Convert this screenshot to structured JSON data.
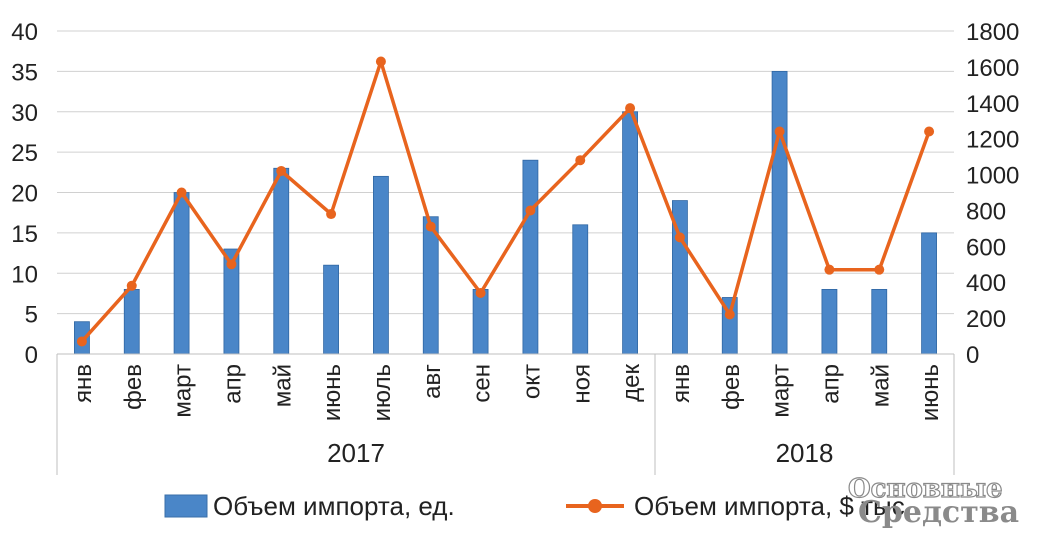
{
  "chart_data": {
    "type": "bar",
    "categories": [
      "янв",
      "фев",
      "март",
      "апр",
      "май",
      "июнь",
      "июль",
      "авг",
      "сен",
      "окт",
      "ноя",
      "дек",
      "янв",
      "фев",
      "март",
      "апр",
      "май",
      "июнь"
    ],
    "groups": [
      {
        "label": "2017",
        "count": 12
      },
      {
        "label": "2018",
        "count": 6
      }
    ],
    "series": [
      {
        "name": "Объем импорта, ед.",
        "type": "bar",
        "axis": "left",
        "color": "#4a86c8",
        "values": [
          4,
          8,
          20,
          13,
          23,
          11,
          22,
          17,
          8,
          24,
          16,
          30,
          19,
          7,
          35,
          8,
          8,
          15
        ]
      },
      {
        "name": "Объем импорта, $ тыс.",
        "type": "line",
        "axis": "right",
        "color": "#e8641e",
        "values": [
          70,
          380,
          900,
          500,
          1020,
          780,
          1630,
          710,
          340,
          800,
          1080,
          1370,
          650,
          220,
          1240,
          470,
          470,
          1240
        ]
      }
    ],
    "y_left": {
      "ylim": [
        0,
        40
      ],
      "ticks": [
        "0",
        "5",
        "10",
        "15",
        "20",
        "25",
        "30",
        "35",
        "40"
      ]
    },
    "y_right": {
      "ylim": [
        0,
        1800
      ],
      "ticks": [
        "0",
        "200",
        "400",
        "600",
        "800",
        "1000",
        "1200",
        "1400",
        "1600",
        "1800"
      ]
    },
    "grid": true,
    "legend_position": "bottom"
  },
  "watermark": {
    "line1": "Основные",
    "line2": "Средства"
  }
}
